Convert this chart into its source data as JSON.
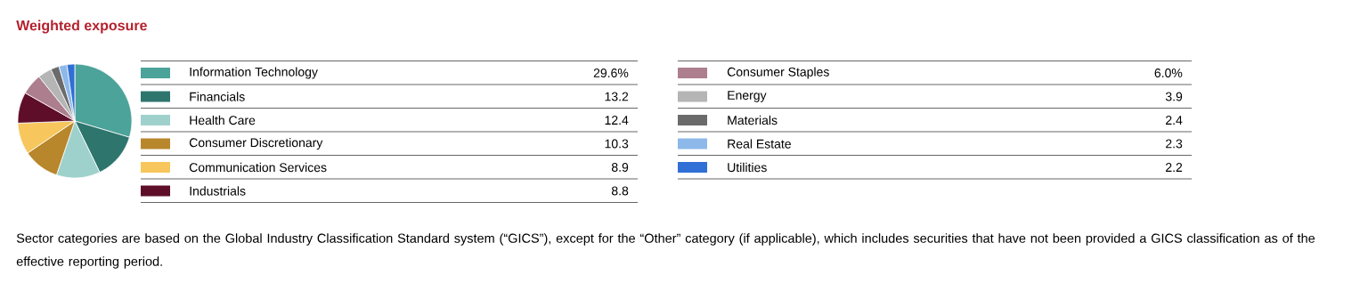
{
  "chart_data": {
    "type": "pie",
    "title": "Weighted exposure",
    "categories": [
      "Information Technology",
      "Financials",
      "Health Care",
      "Consumer Discretionary",
      "Communication Services",
      "Industrials",
      "Consumer Staples",
      "Energy",
      "Materials",
      "Real Estate",
      "Utilities"
    ],
    "values": [
      29.6,
      13.2,
      12.4,
      10.3,
      8.9,
      8.8,
      6.0,
      3.9,
      2.4,
      2.3,
      2.2
    ],
    "value_labels": [
      "29.6%",
      "13.2",
      "12.4",
      "10.3",
      "8.9",
      "8.8",
      "6.0%",
      "3.9",
      "2.4",
      "2.3",
      "2.2"
    ],
    "colors": [
      "#4ba39a",
      "#2e756e",
      "#9fd1cc",
      "#b8862b",
      "#f7c65c",
      "#5e0e28",
      "#ac7e8e",
      "#b5b5b5",
      "#6b6b6b",
      "#8db8ea",
      "#2f6fd6"
    ],
    "legend": "right",
    "annotations": [
      "Sector categories are based on the Global Industry Classification Standard system (“GICS”), except for the “Other” category (if applicable), which includes securities that have not been provided a GICS classification as of the effective reporting period."
    ]
  }
}
